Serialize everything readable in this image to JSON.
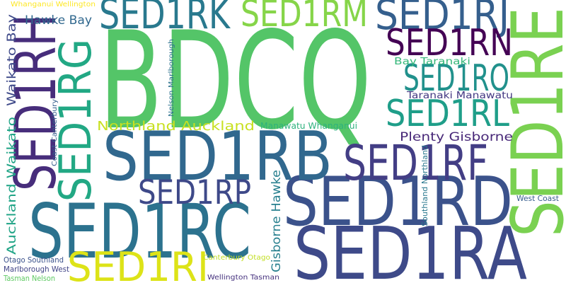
{
  "chart_data": {
    "type": "wordcloud",
    "words": [
      {
        "text": "BDCQ",
        "weight": 100,
        "color": "#54c568"
      },
      {
        "text": "SED1RE",
        "weight": 53,
        "color": "#7ad151"
      },
      {
        "text": "SED1RA",
        "weight": 54,
        "color": "#3e4a89"
      },
      {
        "text": "SED1RD",
        "weight": 50,
        "color": "#3b528b"
      },
      {
        "text": "SED1RC",
        "weight": 56,
        "color": "#2c728e"
      },
      {
        "text": "SED1RB",
        "weight": 50,
        "color": "#31688e"
      },
      {
        "text": "SED1RH",
        "weight": 42,
        "color": "#472d7b"
      },
      {
        "text": "SED1RG",
        "weight": 33,
        "color": "#22a884"
      },
      {
        "text": "SED1RF",
        "weight": 36,
        "color": "#433e85"
      },
      {
        "text": "SED1RK",
        "weight": 31,
        "color": "#29798e"
      },
      {
        "text": "SED1RM",
        "weight": 27,
        "color": "#86d549"
      },
      {
        "text": "SED1RJ",
        "weight": 31,
        "color": "#355f8d"
      },
      {
        "text": "SED1RN",
        "weight": 27,
        "color": "#440154"
      },
      {
        "text": "SED1RO",
        "weight": 27,
        "color": "#21918c"
      },
      {
        "text": "SED1RL",
        "weight": 27,
        "color": "#1f9e89"
      },
      {
        "text": "SED1RP",
        "weight": 25,
        "color": "#3e4989"
      },
      {
        "text": "SED1RI",
        "weight": 30,
        "color": "#dde318"
      },
      {
        "text": "Northland Auckland",
        "weight": 9.5,
        "color": "#c8e020"
      },
      {
        "text": "Plenty Gisborne",
        "weight": 9,
        "color": "#482878"
      },
      {
        "text": "Hawke Bay",
        "weight": 9,
        "color": "#31688e"
      },
      {
        "text": "Waikato Bay",
        "weight": 9,
        "color": "#3e4989"
      },
      {
        "text": "Auckland Waikato",
        "weight": 9,
        "color": "#20a486"
      },
      {
        "text": "Gisborne Hawke",
        "weight": 9,
        "color": "#277f8e"
      },
      {
        "text": "Bay Taranaki",
        "weight": 7,
        "color": "#35b779"
      },
      {
        "text": "Taranaki Manawatu",
        "weight": 7,
        "color": "#443983"
      },
      {
        "text": "Manawatu Whanganui",
        "weight": 6.5,
        "color": "#2db27d"
      },
      {
        "text": "Nelson Marlborough",
        "weight": 5,
        "color": "#2c728e"
      },
      {
        "text": "Coast Canterbury",
        "weight": 5,
        "color": "#355f8d"
      },
      {
        "text": "Southland Northland",
        "weight": 5.5,
        "color": "#2a788e"
      },
      {
        "text": "West Coast",
        "weight": 5.5,
        "color": "#365c8d"
      },
      {
        "text": "Whanganui Wellington",
        "weight": 5,
        "color": "#fde725"
      },
      {
        "text": "Otago Southland",
        "weight": 5.5,
        "color": "#3b528b"
      },
      {
        "text": "Marlborough West",
        "weight": 5.5,
        "color": "#414487"
      },
      {
        "text": "Tasman Nelson",
        "weight": 5.5,
        "color": "#5ec962"
      },
      {
        "text": "Canterbury Otago",
        "weight": 5,
        "color": "#c2df23"
      },
      {
        "text": "Wellington Tasman",
        "weight": 5,
        "color": "#46327e"
      }
    ]
  }
}
